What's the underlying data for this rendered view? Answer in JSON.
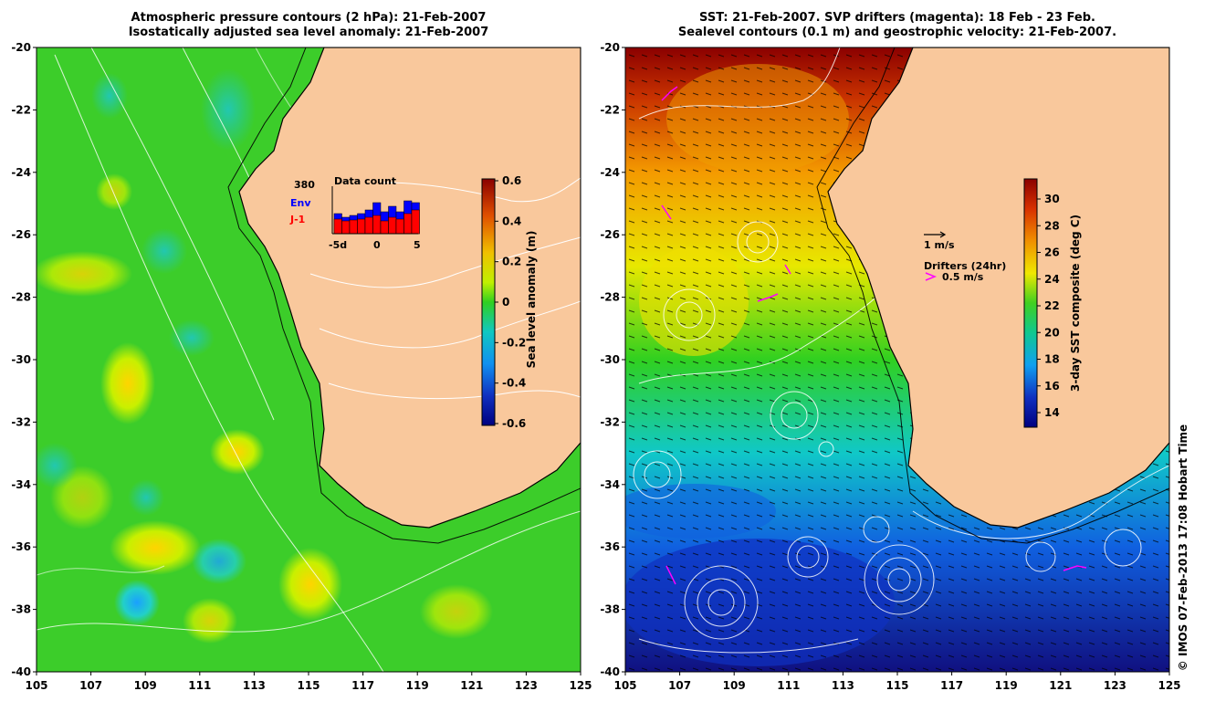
{
  "left_panel": {
    "title_line1": "Atmospheric pressure contours (2 hPa): 21-Feb-2007",
    "title_line2": "Isostatically adjusted sea level anomaly: 21-Feb-2007",
    "colorbar_label": "Sea level anomaly (m)",
    "colorbar_ticks": [
      "0.6",
      "0.4",
      "0.2",
      "0",
      "-0.2",
      "-0.4",
      "-0.6"
    ],
    "inset": {
      "title": "Data count",
      "count": "380",
      "label_env": "Env",
      "label_j1": "J-1",
      "x_ticks": [
        "-5d",
        "0",
        "5"
      ],
      "env_color": "#0000ff",
      "j1_color": "#ff0000"
    }
  },
  "right_panel": {
    "title_line1": "SST: 21-Feb-2007. SVP drifters (magenta): 18 Feb - 23 Feb.",
    "title_line2": "Sealevel contours (0.1 m) and geostrophic velocity: 21-Feb-2007.",
    "colorbar_label": "3-day SST composite (deg C)",
    "colorbar_ticks": [
      "30",
      "28",
      "26",
      "24",
      "22",
      "20",
      "18",
      "16",
      "14"
    ],
    "vector_legend": "1 m/s",
    "drifter_legend_title": "Drifters (24hr)",
    "drifter_legend_value": "0.5 m/s",
    "drifter_color": "#ff00ff"
  },
  "axes": {
    "y_ticks": [
      "-20",
      "-22",
      "-24",
      "-26",
      "-28",
      "-30",
      "-32",
      "-34",
      "-36",
      "-38",
      "-40"
    ],
    "x_ticks": [
      "105",
      "107",
      "109",
      "111",
      "113",
      "115",
      "117",
      "119",
      "121",
      "123",
      "125"
    ]
  },
  "colors": {
    "land": "#f9c89c",
    "coast": "#000000"
  },
  "credit": "© IMOS 07-Feb-2013 17:08 Hobart Time"
}
